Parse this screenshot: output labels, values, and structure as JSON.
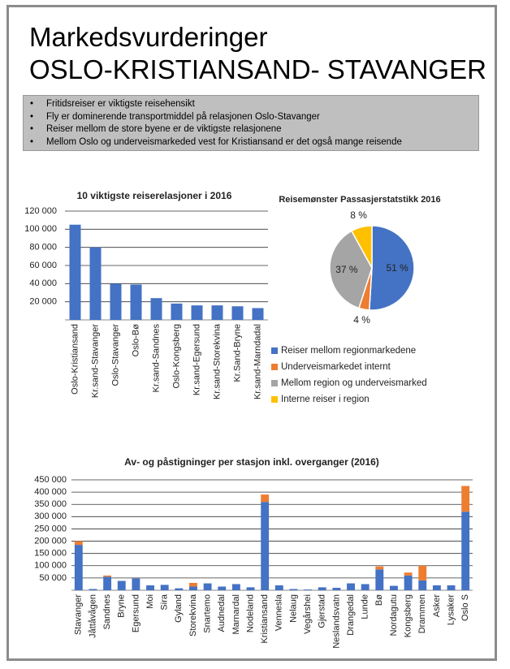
{
  "header": {
    "title_lines": [
      "Markedsvurderinger",
      "OSLO-KRISTIANSAND- STAVANGER"
    ],
    "bullets": [
      "Fritidsreiser er viktigste reisehensikt",
      "Fly er dominerende transportmiddel på relasjonen Oslo-Stavanger",
      "Reiser mellom de store byene er de viktigste relasjonene",
      "Mellom Oslo og underveismarkeded vest for Kristiansand er det også mange reisende"
    ]
  },
  "chart_data": [
    {
      "type": "bar",
      "title": "10 viktigste reiserelasjoner i 2016",
      "categories": [
        "Oslo-Kristiansand",
        "Kr.sand-Stavanger",
        "Oslo-Stavanger",
        "Oslo-Bø",
        "Kr.sand-Sandnes",
        "Oslo-Kongsberg",
        "Kr.sand-Egersund",
        "Kr.sand-Storekvina",
        "Kr.Sand-Bryne",
        "Kr.sand-Marndadal"
      ],
      "series": [
        {
          "color": "#4472c4",
          "values": [
            105000,
            80000,
            40000,
            39000,
            24000,
            18000,
            16000,
            16000,
            15000,
            13000
          ]
        }
      ],
      "ylim": [
        0,
        120000
      ],
      "yticks": [
        {
          "value": 20000,
          "label": "20 000"
        },
        {
          "value": 40000,
          "label": "40 000"
        },
        {
          "value": 60000,
          "label": "60 000"
        },
        {
          "value": 80000,
          "label": "80 000"
        },
        {
          "value": 100000,
          "label": "100 000"
        },
        {
          "value": 120000,
          "label": "120 000"
        }
      ],
      "grid": true
    },
    {
      "type": "pie",
      "title": "Reisemønster Passasjerstatstikk 2016",
      "categories": [
        "Reiser mellom regionmarkedene",
        "Underveismarkedet internt",
        "Mellom region og underveismarked",
        "Interne reiser i region"
      ],
      "values": [
        51,
        4,
        37,
        8
      ],
      "value_labels": [
        "51 %",
        "4 %",
        "37 %",
        "8 %"
      ],
      "colors": [
        "#4472c4",
        "#ed7d31",
        "#a5a5a5",
        "#ffc000"
      ],
      "legend": "bottom"
    },
    {
      "type": "bar",
      "title": "Av- og påstigninger per stasjon inkl. overganger (2016)",
      "categories": [
        "Stavanger",
        "Jåttåvågen",
        "Sandnes",
        "Bryne",
        "Egersund",
        "Moi",
        "Sira",
        "Gyland",
        "Storekvina",
        "Snartemo",
        "Audnedal",
        "Marnardal",
        "Nodeland",
        "Kristiansand",
        "Vennesla",
        "Nelaug",
        "Vegårshei",
        "Gjerstad",
        "Neslandsvatn",
        "Drangedal",
        "Lunde",
        "Bø",
        "Nordagutu",
        "Kongsberg",
        "Drammen",
        "Asker",
        "Lysaker",
        "Oslo S"
      ],
      "series": [
        {
          "color": "#4472c4",
          "values": [
            185000,
            5000,
            55000,
            38000,
            48000,
            20000,
            22000,
            8000,
            15000,
            28000,
            15000,
            25000,
            12000,
            360000,
            20000,
            5000,
            3000,
            12000,
            10000,
            28000,
            25000,
            85000,
            18000,
            60000,
            40000,
            20000,
            20000,
            320000
          ]
        },
        {
          "color": "#ed7d31",
          "values": [
            15000,
            0,
            5000,
            0,
            0,
            0,
            0,
            0,
            15000,
            0,
            0,
            0,
            0,
            30000,
            0,
            0,
            0,
            0,
            0,
            0,
            0,
            12000,
            0,
            12000,
            60000,
            0,
            0,
            105000
          ]
        }
      ],
      "ylim": [
        0,
        450000
      ],
      "yticks": [
        {
          "value": 50000,
          "label": "50 000"
        },
        {
          "value": 100000,
          "label": "100 000"
        },
        {
          "value": 150000,
          "label": "150 000"
        },
        {
          "value": 200000,
          "label": "200 000"
        },
        {
          "value": 250000,
          "label": "250 000"
        },
        {
          "value": 300000,
          "label": "300 000"
        },
        {
          "value": 350000,
          "label": "350 000"
        },
        {
          "value": 400000,
          "label": "400 000"
        },
        {
          "value": 450000,
          "label": "450 000"
        }
      ],
      "grid": true
    }
  ]
}
